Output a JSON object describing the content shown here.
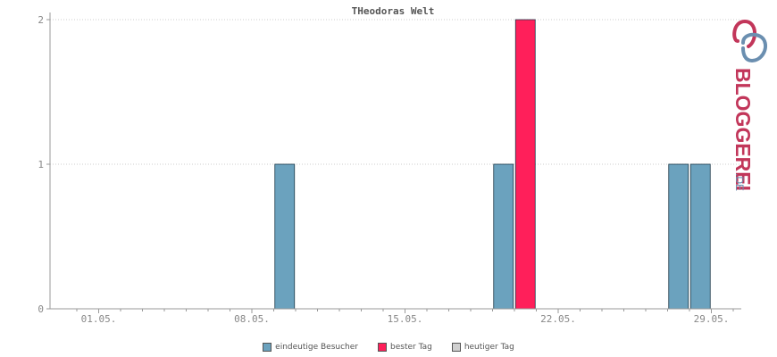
{
  "chart_data": {
    "type": "bar",
    "title": "THeodoras Welt",
    "x_tick_labels": [
      "01.05.",
      "08.05.",
      "15.05.",
      "22.05.",
      "29.05."
    ],
    "x_tick_days": [
      1,
      8,
      15,
      22,
      29
    ],
    "x_range_days": [
      0,
      32
    ],
    "y_ticks": [
      0,
      1,
      2
    ],
    "ylim": [
      0,
      2
    ],
    "grid": true,
    "legend_placement": "bottom-center",
    "series": [
      {
        "name": "eindeutige Besucher",
        "color": "#6ba2be",
        "points": [
          {
            "day": 9.5,
            "value": 1
          },
          {
            "day": 19.5,
            "value": 1
          },
          {
            "day": 27.5,
            "value": 1
          },
          {
            "day": 28.5,
            "value": 1
          }
        ]
      },
      {
        "name": "bester Tag",
        "color": "#ff1f5a",
        "points": [
          {
            "day": 20.5,
            "value": 2
          }
        ]
      },
      {
        "name": "heutiger Tag",
        "color": "#d0d0d0",
        "points": []
      }
    ]
  },
  "logo": {
    "text_main": "BLOGGEREI",
    "text_suffix": ".DE",
    "color_main": "#c2365a",
    "color_suffix": "#6b8fb0"
  }
}
